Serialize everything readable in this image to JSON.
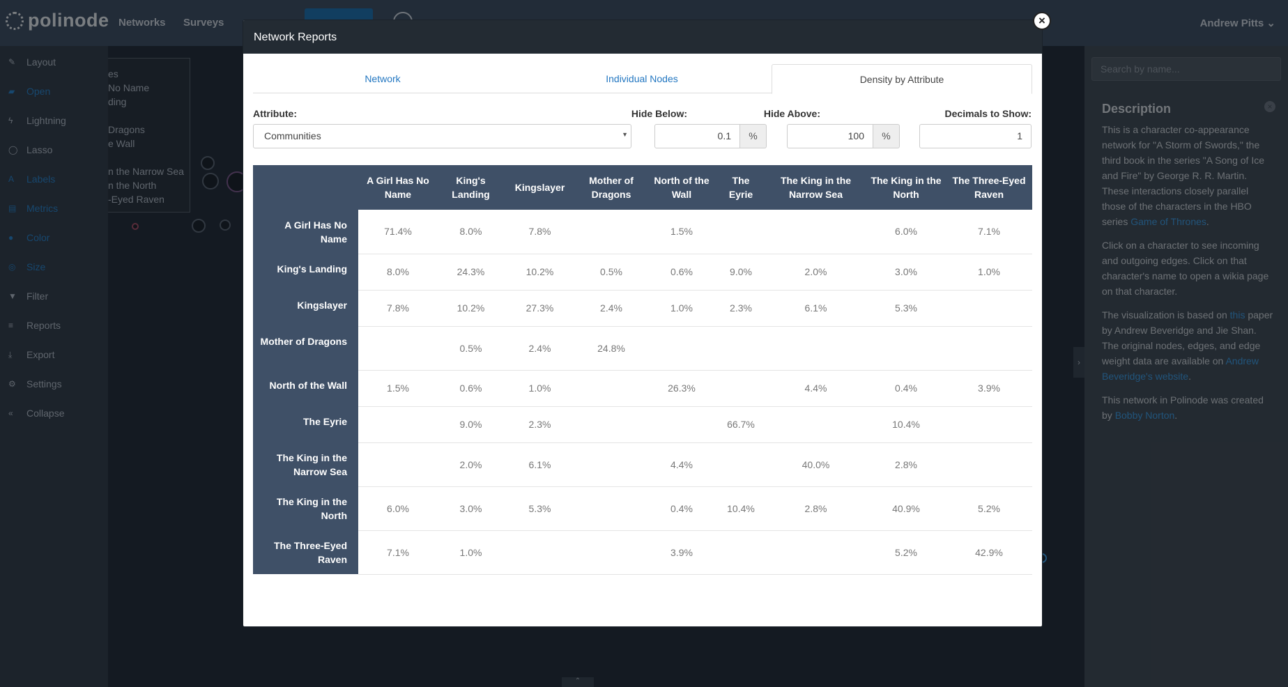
{
  "app": {
    "logo": "polinode",
    "nav": [
      "Networks",
      "Surveys"
    ],
    "user": "Andrew Pitts",
    "sidebar": [
      {
        "label": "Layout",
        "icon": "wand-icon",
        "glyph": "✎",
        "active": false
      },
      {
        "label": "Open",
        "icon": "folder-open-icon",
        "glyph": "▰",
        "active": true
      },
      {
        "label": "Lightning",
        "icon": "bolt-icon",
        "glyph": "ϟ",
        "active": false
      },
      {
        "label": "Lasso",
        "icon": "lasso-icon",
        "glyph": "◯",
        "active": false
      },
      {
        "label": "Labels",
        "icon": "font-icon",
        "glyph": "A",
        "active": true
      },
      {
        "label": "Metrics",
        "icon": "clipboard-icon",
        "glyph": "▤",
        "active": true
      },
      {
        "label": "Color",
        "icon": "drop-icon",
        "glyph": "●",
        "active": true
      },
      {
        "label": "Size",
        "icon": "target-icon",
        "glyph": "◎",
        "active": true
      },
      {
        "label": "Filter",
        "icon": "filter-icon",
        "glyph": "▼",
        "active": false
      },
      {
        "label": "Reports",
        "icon": "list-icon",
        "glyph": "≡",
        "active": false
      },
      {
        "label": "Export",
        "icon": "download-icon",
        "glyph": "⤓",
        "active": false
      },
      {
        "label": "Settings",
        "icon": "gear-icon",
        "glyph": "⚙",
        "active": false
      },
      {
        "label": "Collapse",
        "icon": "double-chevron-left-icon",
        "glyph": "«",
        "active": false
      }
    ],
    "legend": [
      "es",
      "No Name",
      "ding",
      "",
      "Dragons",
      "e Wall",
      "",
      "n the Narrow Sea",
      "n the North",
      "-Eyed Raven"
    ],
    "right_panel": {
      "search_placeholder": "Search by name...",
      "title": "Description",
      "p1_text": "This is a character co-appearance network for \"A Storm of Swords,\" the third book in the series \"A Song of Ice and Fire\" by George R. R. Martin. These interactions closely parallel those of the characters in the HBO series ",
      "p1_link": "Game of Thrones",
      "p1_end": ".",
      "p2": "Click on a character to see incoming and outgoing edges. Click on that character's name to open a wikia page on that character.",
      "p3_a": "The visualization is based on ",
      "p3_link1": "this",
      "p3_b": " paper by Andrew Beveridge and Jie Shan. The original nodes, edges, and edge weight data are available on ",
      "p3_link2": "Andrew Beveridge's website",
      "p3_end": ".",
      "p4_a": "This network in Polinode was created by ",
      "p4_link": "Bobby Norton",
      "p4_end": "."
    }
  },
  "modal": {
    "title": "Network Reports",
    "tabs": [
      "Network",
      "Individual Nodes",
      "Density by Attribute"
    ],
    "active_tab": 2,
    "attribute_label": "Attribute:",
    "attribute_value": "Communities",
    "hide_below_label": "Hide Below:",
    "hide_below_value": "0.1",
    "hide_above_label": "Hide Above:",
    "hide_above_value": "100",
    "percent": "%",
    "decimals_label": "Decimals to Show:",
    "decimals_value": "1",
    "columns": [
      "A Girl Has No Name",
      "King's Landing",
      "Kingslayer",
      "Mother of Dragons",
      "North of the Wall",
      "The Eyrie",
      "The King in the Narrow Sea",
      "The King in the North",
      "The Three-Eyed Raven"
    ],
    "rows": [
      {
        "name": "A Girl Has No Name",
        "cells": [
          "71.4%",
          "8.0%",
          "7.8%",
          "",
          "1.5%",
          "",
          "",
          "6.0%",
          "7.1%"
        ]
      },
      {
        "name": "King's Landing",
        "cells": [
          "8.0%",
          "24.3%",
          "10.2%",
          "0.5%",
          "0.6%",
          "9.0%",
          "2.0%",
          "3.0%",
          "1.0%"
        ]
      },
      {
        "name": "Kingslayer",
        "cells": [
          "7.8%",
          "10.2%",
          "27.3%",
          "2.4%",
          "1.0%",
          "2.3%",
          "6.1%",
          "5.3%",
          ""
        ]
      },
      {
        "name": "Mother of Dragons",
        "cells": [
          "",
          "0.5%",
          "2.4%",
          "24.8%",
          "",
          "",
          "",
          "",
          ""
        ]
      },
      {
        "name": "North of the Wall",
        "cells": [
          "1.5%",
          "0.6%",
          "1.0%",
          "",
          "26.3%",
          "",
          "4.4%",
          "0.4%",
          "3.9%"
        ]
      },
      {
        "name": "The Eyrie",
        "cells": [
          "",
          "9.0%",
          "2.3%",
          "",
          "",
          "66.7%",
          "",
          "10.4%",
          ""
        ]
      },
      {
        "name": "The King in the Narrow Sea",
        "cells": [
          "",
          "2.0%",
          "6.1%",
          "",
          "4.4%",
          "",
          "40.0%",
          "2.8%",
          ""
        ]
      },
      {
        "name": "The King in the North",
        "cells": [
          "6.0%",
          "3.0%",
          "5.3%",
          "",
          "0.4%",
          "10.4%",
          "2.8%",
          "40.9%",
          "5.2%"
        ]
      },
      {
        "name": "The Three-Eyed Raven",
        "cells": [
          "7.1%",
          "1.0%",
          "",
          "",
          "3.9%",
          "",
          "",
          "5.2%",
          "42.9%"
        ]
      }
    ]
  }
}
